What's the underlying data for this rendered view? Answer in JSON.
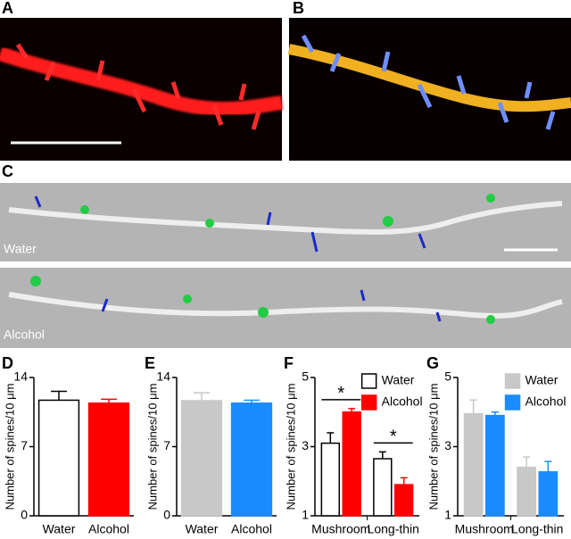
{
  "panel_labels": [
    "A",
    "B",
    "C"
  ],
  "image_labels": [
    "Water",
    "Alcohol"
  ],
  "chart_data": [
    {
      "type": "bar",
      "panel": "D",
      "ylabel": "Number of spines/10 μm",
      "categories": [
        "Water",
        "Alcohol"
      ],
      "values": [
        11.7,
        11.4
      ],
      "errors": [
        0.9,
        0.4
      ],
      "colors": [
        "#ffffff",
        "#ff0000"
      ],
      "ylim": [
        0,
        14
      ],
      "yticks": [
        0,
        7,
        14
      ]
    },
    {
      "type": "bar",
      "panel": "E",
      "ylabel": "Number of spines/10 μm",
      "categories": [
        "Water",
        "Alcohol"
      ],
      "values": [
        11.65,
        11.4
      ],
      "errors": [
        0.8,
        0.3
      ],
      "colors": [
        "#c8c8c8",
        "#1a8cff"
      ],
      "ylim": [
        0,
        14
      ],
      "yticks": [
        0,
        7,
        14
      ]
    },
    {
      "type": "bar",
      "panel": "F",
      "ylabel": "Number of spines/10 μm",
      "categories": [
        "Mushroom",
        "Long-thin"
      ],
      "series": [
        {
          "name": "Water",
          "color": "#ffffff",
          "values": [
            3.1,
            2.65
          ],
          "errors": [
            0.3,
            0.2
          ]
        },
        {
          "name": "Alcohol",
          "color": "#ff0000",
          "values": [
            4.0,
            1.9
          ],
          "errors": [
            0.1,
            0.2
          ]
        }
      ],
      "annotations": [
        "*",
        "*"
      ],
      "ylim": [
        1,
        5
      ],
      "yticks": [
        1,
        3,
        5
      ]
    },
    {
      "type": "bar",
      "panel": "G",
      "ylabel": "Number of spines/10 μm",
      "categories": [
        "Mushroom",
        "Long-thin"
      ],
      "series": [
        {
          "name": "Water",
          "color": "#c8c8c8",
          "values": [
            3.95,
            2.4
          ],
          "errors": [
            0.4,
            0.3
          ]
        },
        {
          "name": "Alcohol",
          "color": "#1a8cff",
          "values": [
            3.9,
            2.27
          ],
          "errors": [
            0.1,
            0.3
          ]
        }
      ],
      "ylim": [
        1,
        5
      ],
      "yticks": [
        1,
        3,
        5
      ]
    }
  ]
}
